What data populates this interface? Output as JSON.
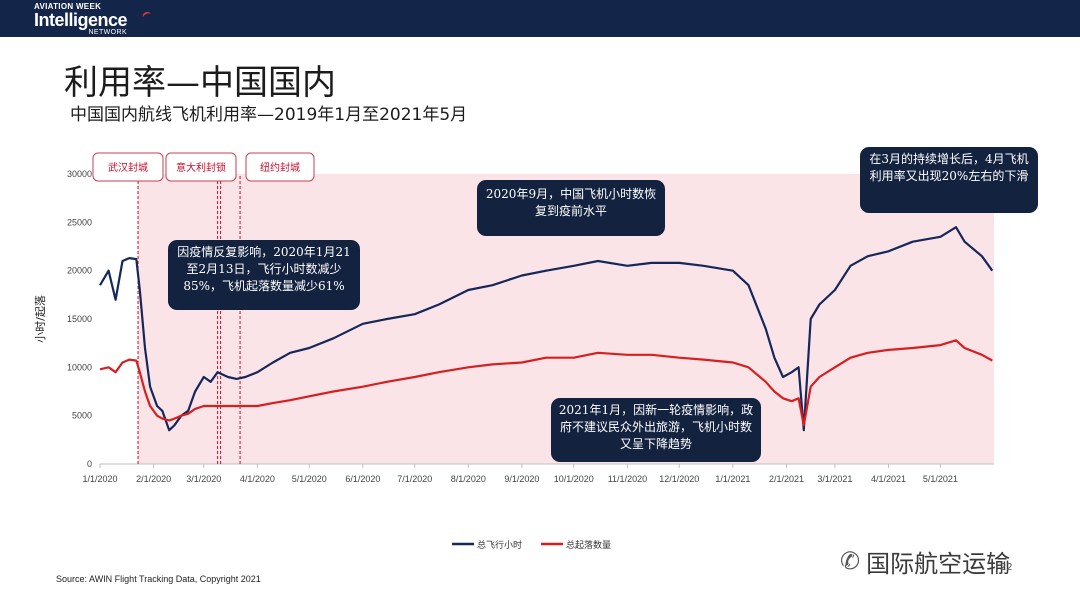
{
  "header": {
    "logo_line1": "AVIATION WEEK",
    "logo_line2": "Intelligence",
    "logo_line3": "NETWORK"
  },
  "title": "利用率—中国国内",
  "subtitle": "中国国内航线飞机利用率—2019年1月至2021年5月",
  "source": "Source: AWIN Flight Tracking Data, Copyright 2021",
  "watermark": {
    "icon": "wechat-icon",
    "text": "国际航空运输"
  },
  "page_number": "22",
  "callouts": [
    "因疫情反复影响，2020年1月21至2月13日，飞行小时数减少85%，飞机起落数量减少61%",
    "2020年9月，中国飞机小时数恢复到疫前水平",
    "2021年1月，因新一轮疫情影响，政府不建议民众外出旅游，飞机小时数又呈下降趋势",
    "在3月的持续增长后，4月飞机利用率又出现20%左右的下滑"
  ],
  "colors": {
    "header_bg": "#14254a",
    "flight_hours": "#15285a",
    "cycles": "#d61f1f",
    "shade": "#fbe4e8",
    "event_line": "#c8102e",
    "callout_bg": "#13223f"
  },
  "chart_data": {
    "type": "line",
    "title": "",
    "xlabel": "",
    "ylabel": "小时/起落",
    "ylim": [
      0,
      30000
    ],
    "yticks": [
      0,
      5000,
      10000,
      15000,
      20000,
      25000,
      30000
    ],
    "xlim": [
      "2020-01-01",
      "2021-06-01"
    ],
    "xticks": [
      "1/1/2020",
      "2/1/2020",
      "3/1/2020",
      "4/1/2020",
      "5/1/2020",
      "6/1/2020",
      "7/1/2020",
      "8/1/2020",
      "9/1/2020",
      "10/1/2020",
      "11/1/2020",
      "12/1/2020",
      "1/1/2021",
      "2/1/2021",
      "3/1/2021",
      "4/1/2021",
      "5/1/2021"
    ],
    "shaded_region": [
      "2020-01-23",
      "2021-06-01"
    ],
    "events": [
      {
        "label": "武汉封城",
        "date": "2020-01-23"
      },
      {
        "label": "意大利封锁",
        "date": "2020-03-09"
      },
      {
        "label": "纽约封城",
        "date": "2020-03-22"
      }
    ],
    "legend_position": "bottom",
    "series": [
      {
        "name": "总飞行小时",
        "x": [
          "2020-01-01",
          "2020-01-06",
          "2020-01-10",
          "2020-01-14",
          "2020-01-18",
          "2020-01-22",
          "2020-01-24",
          "2020-01-27",
          "2020-01-30",
          "2020-02-03",
          "2020-02-06",
          "2020-02-10",
          "2020-02-13",
          "2020-02-17",
          "2020-02-21",
          "2020-02-25",
          "2020-03-01",
          "2020-03-05",
          "2020-03-09",
          "2020-03-15",
          "2020-03-20",
          "2020-03-25",
          "2020-04-01",
          "2020-04-10",
          "2020-04-20",
          "2020-05-01",
          "2020-05-15",
          "2020-06-01",
          "2020-06-15",
          "2020-07-01",
          "2020-07-15",
          "2020-08-01",
          "2020-08-15",
          "2020-09-01",
          "2020-09-15",
          "2020-10-01",
          "2020-10-15",
          "2020-11-01",
          "2020-11-15",
          "2020-12-01",
          "2020-12-15",
          "2021-01-01",
          "2021-01-10",
          "2021-01-20",
          "2021-01-25",
          "2021-01-30",
          "2021-02-04",
          "2021-02-08",
          "2021-02-11",
          "2021-02-15",
          "2021-02-20",
          "2021-03-01",
          "2021-03-10",
          "2021-03-20",
          "2021-04-01",
          "2021-04-15",
          "2021-05-01",
          "2021-05-10",
          "2021-05-15",
          "2021-05-25",
          "2021-05-31"
        ],
        "values": [
          18500,
          20000,
          17000,
          21000,
          21300,
          21200,
          18000,
          12000,
          8000,
          6000,
          5500,
          3500,
          4000,
          5000,
          5500,
          7500,
          9000,
          8500,
          9500,
          9000,
          8800,
          9000,
          9500,
          10500,
          11500,
          12000,
          13000,
          14500,
          15000,
          15500,
          16500,
          18000,
          18500,
          19500,
          20000,
          20500,
          21000,
          20500,
          20800,
          20800,
          20500,
          20000,
          18500,
          14000,
          11000,
          9000,
          9500,
          10000,
          3500,
          15000,
          16500,
          18000,
          20500,
          21500,
          22000,
          23000,
          23500,
          24500,
          23000,
          21500,
          20000
        ]
      },
      {
        "name": "总起落数量",
        "x": [
          "2020-01-01",
          "2020-01-06",
          "2020-01-10",
          "2020-01-14",
          "2020-01-18",
          "2020-01-22",
          "2020-01-24",
          "2020-01-27",
          "2020-01-30",
          "2020-02-03",
          "2020-02-06",
          "2020-02-10",
          "2020-02-13",
          "2020-02-17",
          "2020-02-21",
          "2020-02-25",
          "2020-03-01",
          "2020-03-05",
          "2020-03-09",
          "2020-03-15",
          "2020-03-20",
          "2020-03-25",
          "2020-04-01",
          "2020-04-10",
          "2020-04-20",
          "2020-05-01",
          "2020-05-15",
          "2020-06-01",
          "2020-06-15",
          "2020-07-01",
          "2020-07-15",
          "2020-08-01",
          "2020-08-15",
          "2020-09-01",
          "2020-09-15",
          "2020-10-01",
          "2020-10-15",
          "2020-11-01",
          "2020-11-15",
          "2020-12-01",
          "2020-12-15",
          "2021-01-01",
          "2021-01-10",
          "2021-01-20",
          "2021-01-25",
          "2021-01-30",
          "2021-02-04",
          "2021-02-08",
          "2021-02-11",
          "2021-02-15",
          "2021-02-20",
          "2021-03-01",
          "2021-03-10",
          "2021-03-20",
          "2021-04-01",
          "2021-04-15",
          "2021-05-01",
          "2021-05-10",
          "2021-05-15",
          "2021-05-25",
          "2021-05-31"
        ],
        "values": [
          9800,
          10000,
          9500,
          10500,
          10800,
          10700,
          9500,
          7500,
          6000,
          5000,
          4700,
          4500,
          4700,
          5000,
          5200,
          5700,
          6000,
          6000,
          6000,
          6000,
          6000,
          6000,
          6000,
          6300,
          6600,
          7000,
          7500,
          8000,
          8500,
          9000,
          9500,
          10000,
          10300,
          10500,
          11000,
          11000,
          11500,
          11300,
          11300,
          11000,
          10800,
          10500,
          10000,
          8500,
          7500,
          6800,
          6500,
          6800,
          4000,
          8000,
          9000,
          10000,
          11000,
          11500,
          11800,
          12000,
          12300,
          12800,
          12000,
          11300,
          10700
        ]
      }
    ]
  }
}
